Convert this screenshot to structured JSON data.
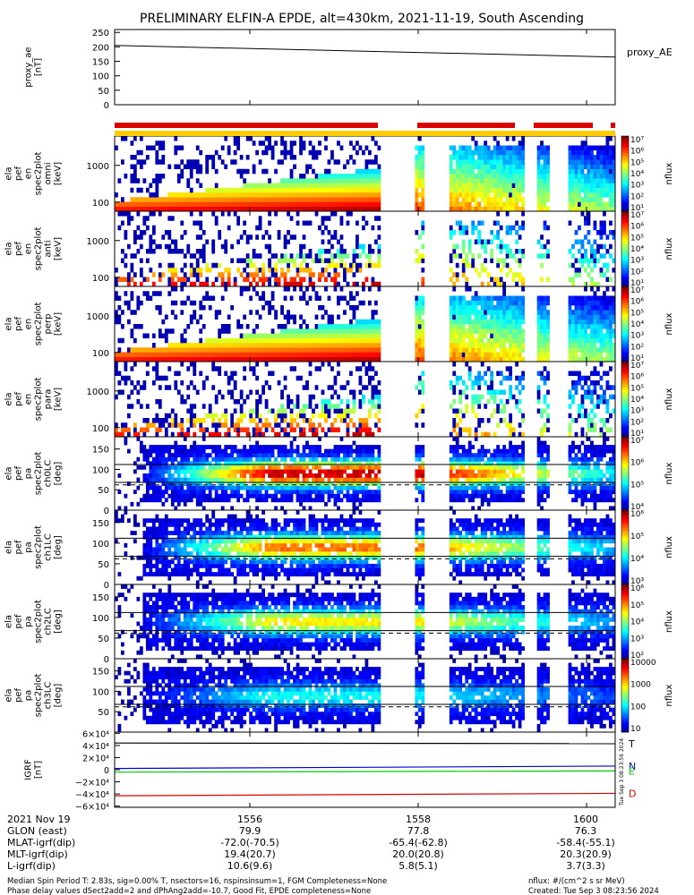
{
  "title": "PRELIMINARY ELFIN-A EPDE, alt=430km, 2021-11-19, South Ascending",
  "stamp": "Tue Sep  3 08:23:56 2024",
  "chart_data": [
    {
      "type": "line",
      "id": "proxy_ae",
      "ylabel": [
        "proxy_ae",
        "[nT]"
      ],
      "legend": "proxy_AE",
      "ylim": [
        0,
        260
      ],
      "yticks": [
        "250",
        "200",
        "150",
        "100",
        "50",
        "0"
      ],
      "x_time": [
        "15:55.0",
        "16:00.9"
      ],
      "values": [
        205,
        165
      ]
    },
    {
      "type": "heatmap",
      "id": "en_omni",
      "ylabel": [
        "ela",
        "pef",
        "en",
        "spec2plot",
        "omni",
        "[keV]"
      ],
      "yscale": "log",
      "yticks": [
        "1000",
        "100"
      ],
      "zlabel": "nflux",
      "zticks": [
        "10^7",
        "10^6",
        "10^5",
        "10^4",
        "10^3",
        "10^2",
        "10^1"
      ]
    },
    {
      "type": "heatmap",
      "id": "en_anti",
      "ylabel": [
        "ela",
        "pef",
        "en",
        "spec2plot",
        "anti",
        "[keV]"
      ],
      "yscale": "log",
      "yticks": [
        "1000",
        "100"
      ],
      "zlabel": "nflux",
      "zticks": [
        "10^7",
        "10^6",
        "10^5",
        "10^4",
        "10^3",
        "10^2",
        "10^1"
      ]
    },
    {
      "type": "heatmap",
      "id": "en_perp",
      "ylabel": [
        "ela",
        "pef",
        "en",
        "spec2plot",
        "perp",
        "[keV]"
      ],
      "yscale": "log",
      "yticks": [
        "1000",
        "100"
      ],
      "zlabel": "nflux",
      "zticks": [
        "10^7",
        "10^6",
        "10^5",
        "10^4",
        "10^3",
        "10^2",
        "10^1"
      ]
    },
    {
      "type": "heatmap",
      "id": "en_para",
      "ylabel": [
        "ela",
        "pef",
        "en",
        "spec2plot",
        "para",
        "[keV]"
      ],
      "yscale": "log",
      "yticks": [
        "1000",
        "100"
      ],
      "zlabel": "nflux",
      "zticks": [
        "10^7",
        "10^6",
        "10^5",
        "10^4",
        "10^3",
        "10^2",
        "10^1"
      ]
    },
    {
      "type": "heatmap",
      "id": "pa_ch0",
      "ylabel": [
        "ela",
        "pef",
        "pa",
        "spec2plot",
        "ch0LC",
        "[deg]"
      ],
      "ylim": [
        0,
        180
      ],
      "yticks": [
        "150",
        "100",
        "50",
        "0"
      ],
      "zlabel": "nflux",
      "zticks": [
        "10^7",
        "10^6",
        "10^5",
        "10^4"
      ]
    },
    {
      "type": "heatmap",
      "id": "pa_ch1",
      "ylabel": [
        "ela",
        "pef",
        "pa",
        "spec2plot",
        "ch1LC",
        "[deg]"
      ],
      "ylim": [
        0,
        180
      ],
      "yticks": [
        "150",
        "100",
        "50",
        "0"
      ],
      "zlabel": "nflux",
      "zticks": [
        "10^6",
        "10^5",
        "10^4",
        "10^3"
      ]
    },
    {
      "type": "heatmap",
      "id": "pa_ch2",
      "ylabel": [
        "ela",
        "pef",
        "pa",
        "spec2plot",
        "ch2LC",
        "[deg]"
      ],
      "ylim": [
        0,
        180
      ],
      "yticks": [
        "150",
        "100",
        "50",
        "0"
      ],
      "zlabel": "nflux",
      "zticks": [
        "10^6",
        "10^5",
        "10^4",
        "10^3",
        "10^2"
      ]
    },
    {
      "type": "heatmap",
      "id": "pa_ch3",
      "ylabel": [
        "ela",
        "pef",
        "pa",
        "spec2plot",
        "ch3LC",
        "[deg]"
      ],
      "ylim": [
        0,
        180
      ],
      "yticks": [
        "150",
        "100",
        "50"
      ],
      "zlabel": "nflux",
      "zticks": [
        "10000",
        "1000",
        "100",
        "10"
      ]
    },
    {
      "type": "line",
      "id": "igrf",
      "ylabel": [
        "IGRF",
        "[nT]"
      ],
      "yticks": [
        "6×10^4",
        "4×10^4",
        "2×10^4",
        "0",
        "−2×10^4",
        "−4×10^4",
        "−6×10^4"
      ],
      "ylim": [
        -62000,
        62000
      ],
      "series": [
        {
          "name": "T",
          "color": "#000000",
          "values": [
            44000,
            43000
          ]
        },
        {
          "name": "N",
          "color": "#0000dd",
          "values": [
            2000,
            6000
          ]
        },
        {
          "name": "E",
          "color": "#00cc00",
          "values": [
            -4000,
            -2000
          ]
        },
        {
          "name": "D",
          "color": "#dd0000",
          "values": [
            -43000,
            -39000
          ]
        }
      ]
    }
  ],
  "time_axis": {
    "ticks": [
      "1556",
      "1558",
      "1600"
    ],
    "rows": [
      {
        "label": "2021 Nov 19",
        "values": [
          "",
          "",
          ""
        ]
      },
      {
        "label": "GLON (east)",
        "values": [
          "79.9",
          "77.8",
          "76.3"
        ]
      },
      {
        "label": "MLAT-igrf(dip)",
        "values": [
          "-72.0(-70.5)",
          "-65.4(-62.8)",
          "-58.4(-55.1)"
        ]
      },
      {
        "label": "MLT-igrf(dip)",
        "values": [
          "19.4(20.7)",
          "20.0(20.8)",
          "20.3(20.9)"
        ]
      },
      {
        "label": "L-igrf(dip)",
        "values": [
          "10.6(9.6)",
          "5.8(5.1)",
          "3.7(3.3)"
        ]
      }
    ]
  },
  "footer": {
    "line1": "Median Spin Period T: 2.83s, sig=0.00% T, nsectors=16, nspinsinsum=1, FGM Completeness=None",
    "line2": "Phase delay values dSect2add=2 and dPhAng2add=-10.7, Good Fit, EPDE completeness=None",
    "units": "nflux: #/(cm^2 s sr MeV)",
    "created": "Created: Tue Sep  3 08:23:56 2024"
  },
  "colors": {
    "state_bar_red": "#dd0000",
    "state_bar_yellow": "#ffcc00"
  }
}
